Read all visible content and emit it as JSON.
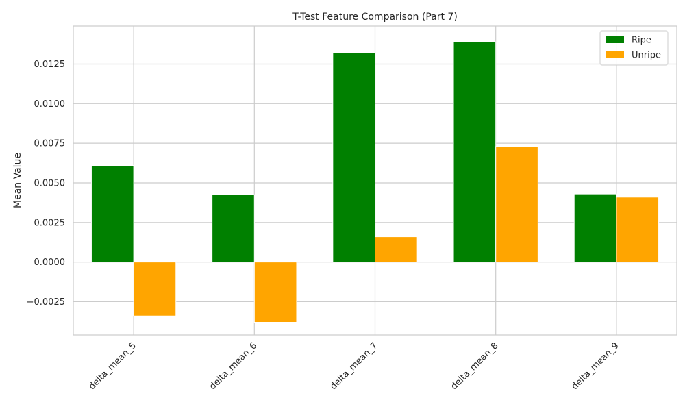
{
  "chart_data": {
    "type": "bar",
    "title": "T-Test Feature Comparison (Part 7)",
    "xlabel": "",
    "ylabel": "Mean Value",
    "categories": [
      "delta_mean_5",
      "delta_mean_6",
      "delta_mean_7",
      "delta_mean_8",
      "delta_mean_9"
    ],
    "series": [
      {
        "name": "Ripe",
        "color": "#008000",
        "values": [
          0.0061,
          0.00425,
          0.0132,
          0.0139,
          0.0043
        ]
      },
      {
        "name": "Unripe",
        "color": "#FFA500",
        "values": [
          -0.0034,
          -0.0038,
          0.0016,
          0.0073,
          0.0041
        ]
      }
    ],
    "ylim": [
      -0.0046,
      0.0149
    ],
    "yticks": [
      -0.0025,
      0.0,
      0.0025,
      0.005,
      0.0075,
      0.01,
      0.0125
    ],
    "ytick_labels": [
      "−0.0025",
      "0.0000",
      "0.0025",
      "0.0050",
      "0.0075",
      "0.0100",
      "0.0125"
    ],
    "grid": true,
    "legend_position": "top-right",
    "x_tick_rotation": 45
  }
}
